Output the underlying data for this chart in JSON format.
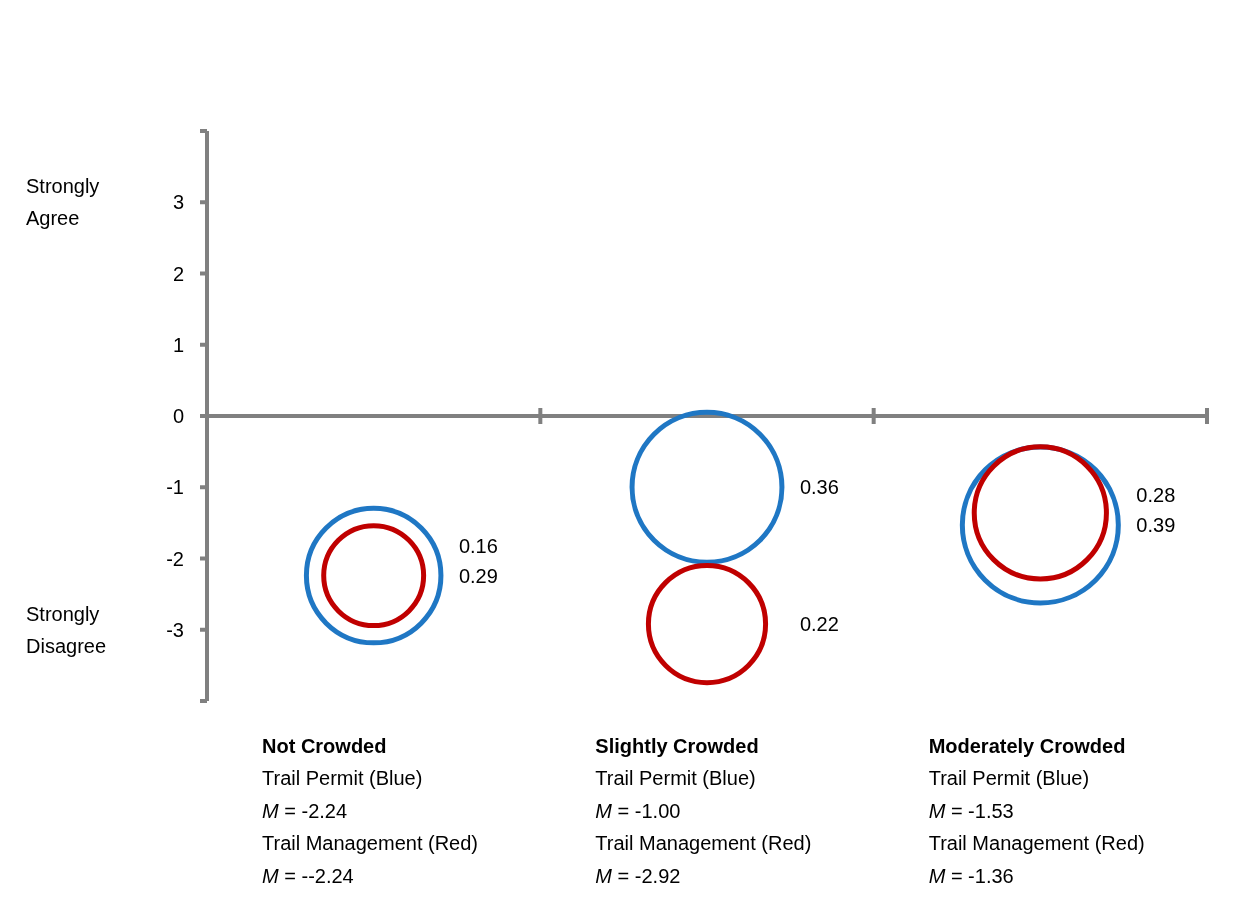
{
  "chart_data": {
    "type": "bubble",
    "categories": [
      "Not Crowded",
      "Slightly Crowded",
      "Moderately Crowded"
    ],
    "series": [
      {
        "color": "#1f77c4",
        "values": [
          -2.24,
          -1.0,
          -1.53
        ],
        "sizes": [
          0.29,
          0.36,
          0.39
        ],
        "value_labels": [
          "0.29",
          "0.36",
          "0.39"
        ]
      },
      {
        "color": "#c00000",
        "values": [
          -2.24,
          -2.92,
          -1.36
        ],
        "sizes": [
          0.16,
          0.22,
          0.28
        ],
        "value_labels": [
          "0.16",
          "0.22",
          "0.28"
        ]
      }
    ],
    "ylim": [
      -4,
      4
    ],
    "yticks": [
      {
        "value": -4,
        "label": null
      },
      -3,
      -2,
      -1,
      0,
      1,
      2,
      3,
      {
        "value": 4,
        "label": null
      }
    ],
    "annotations": [
      "Strongly Agree",
      "Strongly Disagree",
      "Trail Permit (Blue)",
      "M = -2.24",
      "Trail Management (Red)",
      "M = --2.24",
      "Trail Permit (Blue)",
      "M = -1.00",
      "Trail Management (Red)",
      "M = -2.92",
      "Trail Permit (Blue)",
      "M = -1.53",
      "Trail Management (Red)",
      "M = -1.36"
    ]
  }
}
